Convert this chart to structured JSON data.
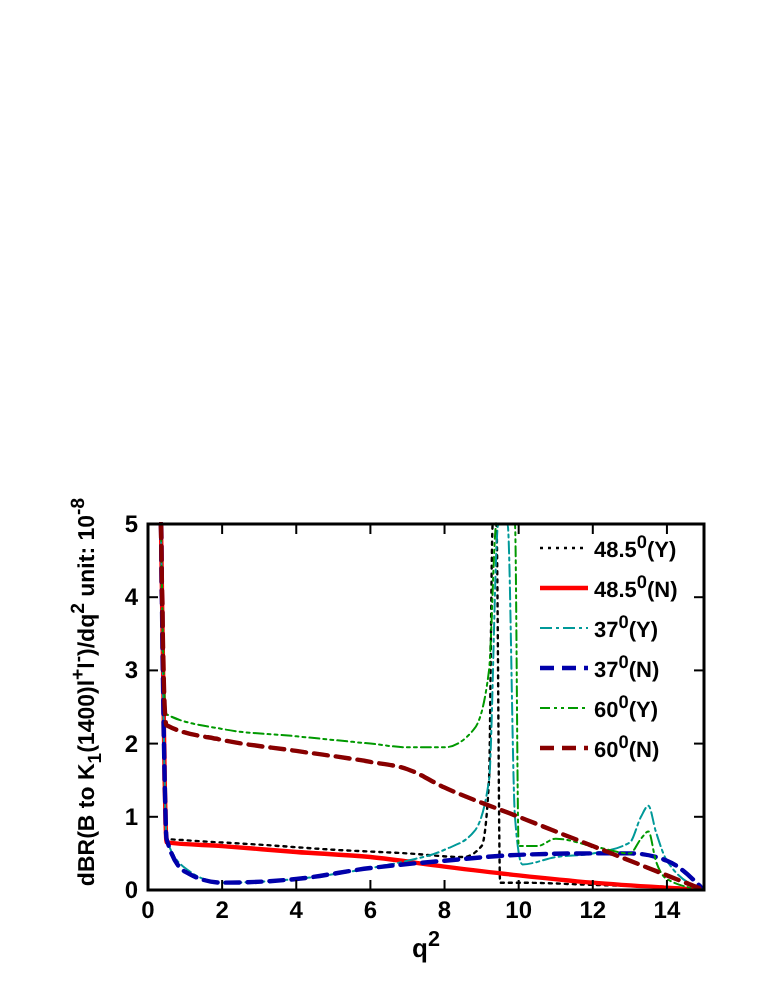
{
  "chart_data": {
    "type": "line",
    "xlabel": "q$^{2}$",
    "ylabel": "dBR(B to K$_{1}$(1400)l$^{+}$l$^{-}$)/dq$^{2}$ unit: 10$^{-8}$",
    "xlim": [
      0,
      15
    ],
    "xticks": [
      0,
      2,
      4,
      6,
      8,
      10,
      12,
      14
    ],
    "ylim": [
      0,
      5
    ],
    "yticks": [
      0,
      1,
      2,
      3,
      4,
      5
    ],
    "grid": false,
    "legend": "top right",
    "series": [
      {
        "name": "48.5$^{0}$(Y)",
        "color": "#000000",
        "line_style": "dotted",
        "x": [
          0.35,
          0.45,
          0.5,
          1,
          3,
          5,
          7,
          8.5,
          9.0,
          9.2,
          9.3,
          9.4,
          9.5,
          10,
          12,
          14,
          15
        ],
        "values": [
          5,
          1.5,
          0.7,
          0.68,
          0.62,
          0.55,
          0.5,
          0.45,
          0.6,
          1.5,
          5,
          5,
          0.1,
          0.1,
          0.07,
          0.04,
          0
        ]
      },
      {
        "name": "48.5$^{0}$(N)",
        "color": "#ff0000",
        "line_style": "solid",
        "x": [
          0.35,
          0.45,
          0.5,
          2,
          4,
          6,
          8,
          10,
          12,
          14,
          15
        ],
        "values": [
          5,
          1.5,
          0.65,
          0.6,
          0.52,
          0.45,
          0.32,
          0.2,
          0.1,
          0.03,
          0
        ]
      },
      {
        "name": "37$^{0}$(Y)",
        "color": "#009999",
        "line_style": "dashdot",
        "x": [
          0.35,
          0.45,
          0.5,
          1,
          2,
          4,
          6,
          7,
          8,
          8.8,
          9.2,
          9.45,
          9.7,
          9.9,
          10.1,
          11,
          12,
          13,
          13.3,
          13.5,
          13.7,
          14,
          15
        ],
        "values": [
          5,
          1.5,
          0.7,
          0.3,
          0.1,
          0.15,
          0.3,
          0.4,
          0.55,
          0.8,
          1.5,
          5,
          5,
          1,
          0.35,
          0.45,
          0.5,
          0.65,
          1,
          1.15,
          0.8,
          0.4,
          0
        ]
      },
      {
        "name": "37$^{0}$(N)",
        "color": "#0000aa",
        "line_style": "dashed",
        "x": [
          0.35,
          0.45,
          0.5,
          1,
          2,
          4,
          6,
          8,
          10,
          12,
          13,
          14,
          15
        ],
        "values": [
          5,
          1.5,
          0.7,
          0.25,
          0.1,
          0.15,
          0.3,
          0.4,
          0.48,
          0.5,
          0.5,
          0.4,
          0
        ]
      },
      {
        "name": "60$^{0}$(Y)",
        "color": "#009900",
        "line_style": "dashdotdot",
        "x": [
          0.35,
          0.45,
          0.5,
          2,
          4,
          6,
          7,
          8,
          8.8,
          9.2,
          9.4,
          9.8,
          9.9,
          10,
          10.5,
          11,
          12,
          13,
          13.3,
          13.5,
          13.7,
          14,
          15
        ],
        "values": [
          5,
          2.6,
          2.4,
          2.2,
          2.1,
          2.0,
          1.95,
          1.95,
          2.2,
          3,
          5,
          5,
          5,
          0.6,
          0.6,
          0.7,
          0.6,
          0.5,
          0.7,
          0.8,
          0.4,
          0.15,
          0
        ]
      },
      {
        "name": "60$^{0}$(N)",
        "color": "#880000",
        "line_style": "dashed",
        "x": [
          0.35,
          0.45,
          0.5,
          2,
          4,
          6,
          7,
          8,
          10,
          12,
          14,
          15
        ],
        "values": [
          5,
          2.5,
          2.25,
          2.05,
          1.9,
          1.75,
          1.65,
          1.4,
          1.0,
          0.6,
          0.2,
          0
        ]
      }
    ]
  }
}
